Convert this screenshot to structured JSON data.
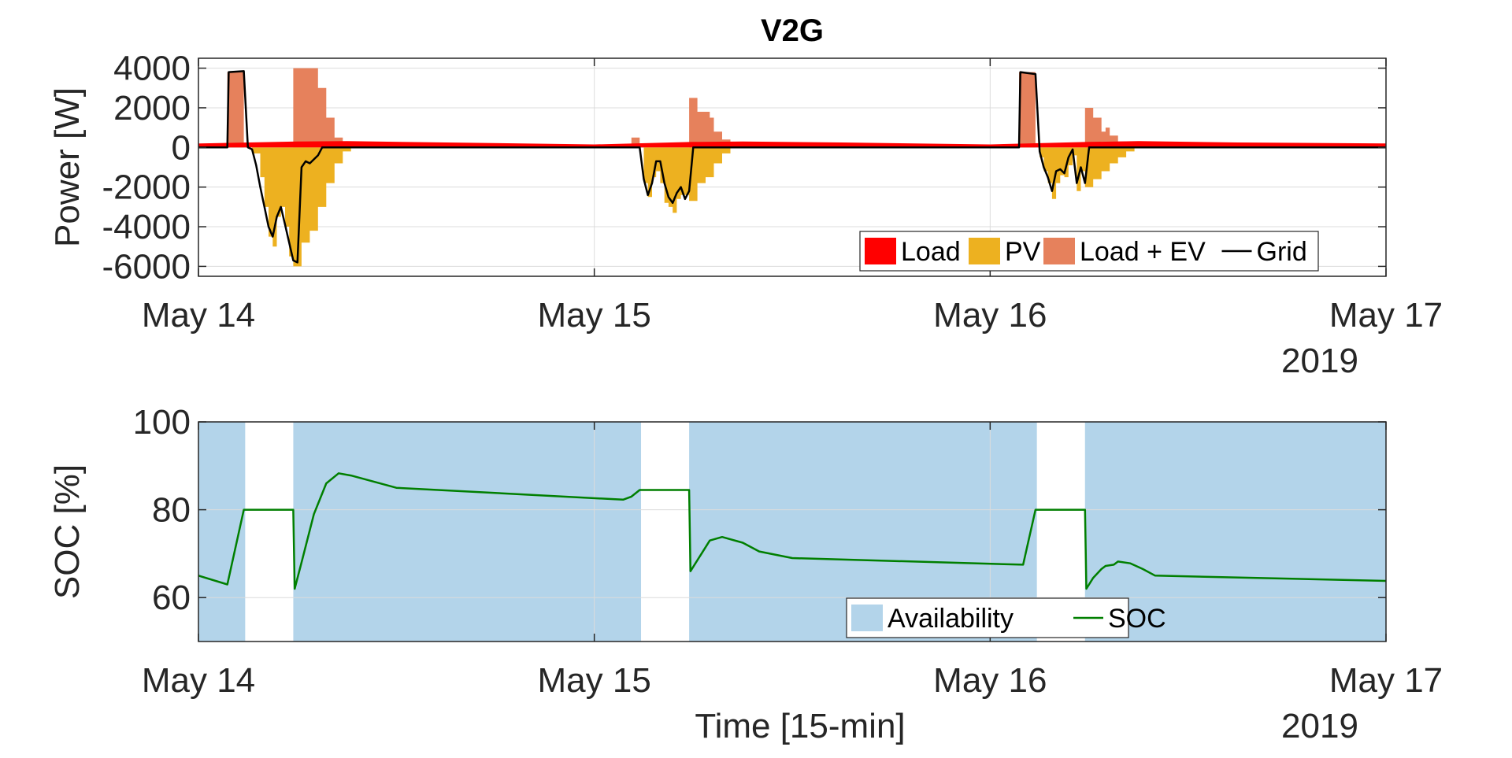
{
  "chart_data": [
    {
      "type": "area",
      "title": "V2G",
      "ylabel": "Power [W]",
      "xlabel": "",
      "x_range": [
        "2019-05-14 00:00",
        "2019-05-17 00:00"
      ],
      "ylim": [
        -6500,
        4500
      ],
      "yticks": [
        -6000,
        -4000,
        -2000,
        0,
        2000,
        4000
      ],
      "xtick_labels": [
        "May 14",
        "May 15",
        "May 16",
        "May 17"
      ],
      "year_label": "2019",
      "grid": true,
      "legend": {
        "placement": "bottom-right",
        "entries": [
          {
            "label": "Load",
            "color": "#ff0000",
            "kind": "area"
          },
          {
            "label": "PV",
            "color": "#edb120",
            "kind": "area"
          },
          {
            "label": "Load + EV",
            "color": "#e6815c",
            "kind": "area"
          },
          {
            "label": "Grid",
            "color": "#000000",
            "kind": "line"
          }
        ]
      },
      "series": [
        {
          "name": "Load + EV",
          "color": "#e6815c",
          "step": "stairs",
          "points": [
            [
              "2019-05-14 00:00",
              0
            ],
            [
              "2019-05-14 01:45",
              0
            ],
            [
              "2019-05-14 01:45",
              3800
            ],
            [
              "2019-05-14 02:45",
              3800
            ],
            [
              "2019-05-14 02:45",
              0
            ],
            [
              "2019-05-14 05:45",
              0
            ],
            [
              "2019-05-14 05:45",
              4000
            ],
            [
              "2019-05-14 06:45",
              4000
            ],
            [
              "2019-05-14 07:15",
              3000
            ],
            [
              "2019-05-14 07:45",
              1500
            ],
            [
              "2019-05-14 08:15",
              500
            ],
            [
              "2019-05-14 08:45",
              0
            ],
            [
              "2019-05-15 12:00",
              0
            ],
            [
              "2019-05-15 12:00",
              0
            ],
            [
              "2019-05-15 01:45",
              0
            ],
            [
              "2019-05-15 02:15",
              500
            ],
            [
              "2019-05-15 02:45",
              1500
            ],
            [
              "2019-05-15 02:45",
              0
            ],
            [
              "2019-05-15 05:45",
              0
            ],
            [
              "2019-05-15 05:45",
              2500
            ],
            [
              "2019-05-15 06:15",
              1800
            ],
            [
              "2019-05-15 07:00",
              1500
            ],
            [
              "2019-05-15 07:15",
              800
            ],
            [
              "2019-05-15 07:45",
              400
            ],
            [
              "2019-05-15 08:15",
              0
            ],
            [
              "2019-05-16 01:45",
              0
            ],
            [
              "2019-05-16 01:45",
              3800
            ],
            [
              "2019-05-16 02:45",
              3800
            ],
            [
              "2019-05-16 02:45",
              0
            ],
            [
              "2019-05-16 05:45",
              0
            ],
            [
              "2019-05-16 05:45",
              2000
            ],
            [
              "2019-05-16 06:15",
              1500
            ],
            [
              "2019-05-16 06:45",
              800
            ],
            [
              "2019-05-16 07:00",
              1000
            ],
            [
              "2019-05-16 07:15",
              600
            ],
            [
              "2019-05-16 07:45",
              300
            ],
            [
              "2019-05-16 08:15",
              0
            ],
            [
              "2019-05-17 00:00",
              0
            ]
          ]
        },
        {
          "name": "PV",
          "color": "#edb120",
          "step": "stairs",
          "points": [
            [
              "2019-05-14 00:00",
              0
            ],
            [
              "2019-05-14 02:45",
              0
            ],
            [
              "2019-05-14 03:15",
              -300
            ],
            [
              "2019-05-14 03:45",
              -1500
            ],
            [
              "2019-05-14 04:00",
              -3000
            ],
            [
              "2019-05-14 04:15",
              -4500
            ],
            [
              "2019-05-14 04:30",
              -5000
            ],
            [
              "2019-05-14 04:45",
              -3500
            ],
            [
              "2019-05-14 05:00",
              -3000
            ],
            [
              "2019-05-14 05:15",
              -4000
            ],
            [
              "2019-05-14 05:30",
              -5500
            ],
            [
              "2019-05-14 05:45",
              -6000
            ],
            [
              "2019-05-14 06:15",
              -4800
            ],
            [
              "2019-05-14 06:45",
              -4200
            ],
            [
              "2019-05-14 07:15",
              -3000
            ],
            [
              "2019-05-14 07:45",
              -1800
            ],
            [
              "2019-05-14 08:15",
              -800
            ],
            [
              "2019-05-14 08:45",
              -200
            ],
            [
              "2019-05-14 09:15",
              0
            ],
            [
              "2019-05-15 02:45",
              0
            ],
            [
              "2019-05-15 03:00",
              -1800
            ],
            [
              "2019-05-15 03:15",
              -2500
            ],
            [
              "2019-05-15 03:30",
              -1500
            ],
            [
              "2019-05-15 03:45",
              -1200
            ],
            [
              "2019-05-15 04:00",
              -1800
            ],
            [
              "2019-05-15 04:15",
              -2800
            ],
            [
              "2019-05-15 04:30",
              -3000
            ],
            [
              "2019-05-15 04:45",
              -3300
            ],
            [
              "2019-05-15 05:00",
              -2600
            ],
            [
              "2019-05-15 05:15",
              -2400
            ],
            [
              "2019-05-15 05:45",
              -2700
            ],
            [
              "2019-05-15 06:15",
              -1800
            ],
            [
              "2019-05-15 06:45",
              -1500
            ],
            [
              "2019-05-15 07:15",
              -800
            ],
            [
              "2019-05-15 07:45",
              -300
            ],
            [
              "2019-05-15 08:15",
              0
            ],
            [
              "2019-05-16 02:45",
              0
            ],
            [
              "2019-05-16 03:00",
              -500
            ],
            [
              "2019-05-16 03:15",
              -1200
            ],
            [
              "2019-05-16 03:30",
              -1800
            ],
            [
              "2019-05-16 03:45",
              -2600
            ],
            [
              "2019-05-16 04:00",
              -1800
            ],
            [
              "2019-05-16 04:15",
              -1400
            ],
            [
              "2019-05-16 04:30",
              -1500
            ],
            [
              "2019-05-16 04:45",
              -900
            ],
            [
              "2019-05-16 05:00",
              -400
            ],
            [
              "2019-05-16 05:15",
              -2200
            ],
            [
              "2019-05-16 05:30",
              -1200
            ],
            [
              "2019-05-16 05:45",
              -2000
            ],
            [
              "2019-05-16 06:15",
              -1600
            ],
            [
              "2019-05-16 06:45",
              -1200
            ],
            [
              "2019-05-16 07:15",
              -800
            ],
            [
              "2019-05-16 07:45",
              -500
            ],
            [
              "2019-05-16 08:15",
              -200
            ],
            [
              "2019-05-16 08:45",
              0
            ],
            [
              "2019-05-17 00:00",
              0
            ]
          ]
        },
        {
          "name": "Load",
          "color": "#ff0000",
          "points": [
            [
              "2019-05-14 00:00",
              200
            ],
            [
              "2019-05-14 06:00",
              300
            ],
            [
              "2019-05-14 09:00",
              320
            ],
            [
              "2019-05-14 15:00",
              250
            ],
            [
              "2019-05-15 00:00",
              150
            ],
            [
              "2019-05-15 06:00",
              280
            ],
            [
              "2019-05-15 09:00",
              300
            ],
            [
              "2019-05-15 15:00",
              250
            ],
            [
              "2019-05-16 00:00",
              150
            ],
            [
              "2019-05-16 06:00",
              280
            ],
            [
              "2019-05-16 09:00",
              320
            ],
            [
              "2019-05-16 15:00",
              250
            ],
            [
              "2019-05-17 00:00",
              200
            ]
          ]
        },
        {
          "name": "Grid",
          "color": "#000000",
          "kind": "line",
          "points": [
            [
              "2019-05-14 00:00",
              0
            ],
            [
              "2019-05-14 01:45",
              0
            ],
            [
              "2019-05-14 01:50",
              3800
            ],
            [
              "2019-05-14 02:45",
              3850
            ],
            [
              "2019-05-14 03:00",
              0
            ],
            [
              "2019-05-14 03:15",
              -100
            ],
            [
              "2019-05-14 03:30",
              -900
            ],
            [
              "2019-05-14 03:45",
              -2000
            ],
            [
              "2019-05-14 04:00",
              -3000
            ],
            [
              "2019-05-14 04:15",
              -4000
            ],
            [
              "2019-05-14 04:30",
              -4500
            ],
            [
              "2019-05-14 04:45",
              -3500
            ],
            [
              "2019-05-14 05:00",
              -3000
            ],
            [
              "2019-05-14 05:15",
              -3900
            ],
            [
              "2019-05-14 05:30",
              -4800
            ],
            [
              "2019-05-14 05:45",
              -5700
            ],
            [
              "2019-05-14 06:00",
              -5800
            ],
            [
              "2019-05-14 06:15",
              -1000
            ],
            [
              "2019-05-14 06:30",
              -700
            ],
            [
              "2019-05-14 06:45",
              -800
            ],
            [
              "2019-05-14 07:15",
              -400
            ],
            [
              "2019-05-14 07:30",
              0
            ],
            [
              "2019-05-15 02:45",
              0
            ],
            [
              "2019-05-15 03:00",
              -1600
            ],
            [
              "2019-05-15 03:15",
              -2400
            ],
            [
              "2019-05-15 03:30",
              -1800
            ],
            [
              "2019-05-15 03:45",
              -700
            ],
            [
              "2019-05-15 04:00",
              -700
            ],
            [
              "2019-05-15 04:15",
              -1800
            ],
            [
              "2019-05-15 04:30",
              -2500
            ],
            [
              "2019-05-15 04:45",
              -2800
            ],
            [
              "2019-05-15 05:00",
              -2300
            ],
            [
              "2019-05-15 05:15",
              -2000
            ],
            [
              "2019-05-15 05:30",
              -2600
            ],
            [
              "2019-05-15 05:45",
              -2200
            ],
            [
              "2019-05-15 06:00",
              0
            ],
            [
              "2019-05-16 01:45",
              0
            ],
            [
              "2019-05-16 01:50",
              3800
            ],
            [
              "2019-05-16 02:45",
              3700
            ],
            [
              "2019-05-16 03:00",
              -200
            ],
            [
              "2019-05-16 03:15",
              -1000
            ],
            [
              "2019-05-16 03:30",
              -1500
            ],
            [
              "2019-05-16 03:45",
              -2200
            ],
            [
              "2019-05-16 04:00",
              -1200
            ],
            [
              "2019-05-16 04:15",
              -1100
            ],
            [
              "2019-05-16 04:30",
              -1300
            ],
            [
              "2019-05-16 04:45",
              -500
            ],
            [
              "2019-05-16 05:00",
              -100
            ],
            [
              "2019-05-16 05:15",
              -1800
            ],
            [
              "2019-05-16 05:30",
              -1000
            ],
            [
              "2019-05-16 05:45",
              -1800
            ],
            [
              "2019-05-16 06:00",
              0
            ],
            [
              "2019-05-17 00:00",
              0
            ]
          ]
        }
      ]
    },
    {
      "type": "line",
      "title": "",
      "ylabel": "SOC [%]",
      "xlabel": "Time [15-min]",
      "x_range": [
        "2019-05-14 00:00",
        "2019-05-17 00:00"
      ],
      "ylim": [
        50,
        100
      ],
      "yticks": [
        60,
        80,
        100
      ],
      "xtick_labels": [
        "May 14",
        "May 15",
        "May 16",
        "May 17"
      ],
      "year_label": "2019",
      "grid": true,
      "legend": {
        "placement": "bottom-center",
        "entries": [
          {
            "label": "Availability",
            "color": "#b3d4ea",
            "kind": "area"
          },
          {
            "label": "SOC",
            "color": "#007f00",
            "kind": "line"
          }
        ]
      },
      "availability": [
        [
          "2019-05-14 00:00",
          "2019-05-14 02:50"
        ],
        [
          "2019-05-14 05:45",
          "2019-05-15 02:50"
        ],
        [
          "2019-05-15 05:45",
          "2019-05-16 02:50"
        ],
        [
          "2019-05-16 05:45",
          "2019-05-17 00:00"
        ]
      ],
      "series": [
        {
          "name": "SOC",
          "color": "#007f00",
          "points": [
            [
              "2019-05-14 00:00",
              65
            ],
            [
              "2019-05-14 01:45",
              63
            ],
            [
              "2019-05-14 02:45",
              80
            ],
            [
              "2019-05-14 05:45",
              80
            ],
            [
              "2019-05-14 05:50",
              62
            ],
            [
              "2019-05-14 06:15",
              68
            ],
            [
              "2019-05-14 07:00",
              79
            ],
            [
              "2019-05-14 07:45",
              86
            ],
            [
              "2019-05-14 08:30",
              88.3
            ],
            [
              "2019-05-14 09:15",
              87.8
            ],
            [
              "2019-05-14 12:00",
              85
            ],
            [
              "2019-05-15 01:45",
              82.3
            ],
            [
              "2019-05-15 02:15",
              83
            ],
            [
              "2019-05-15 02:45",
              84.5
            ],
            [
              "2019-05-15 05:45",
              84.5
            ],
            [
              "2019-05-15 05:50",
              66
            ],
            [
              "2019-05-15 06:30",
              70
            ],
            [
              "2019-05-15 07:00",
              73
            ],
            [
              "2019-05-15 07:45",
              73.8
            ],
            [
              "2019-05-15 09:00",
              72.5
            ],
            [
              "2019-05-15 10:00",
              70.5
            ],
            [
              "2019-05-15 12:00",
              69
            ],
            [
              "2019-05-16 02:00",
              67.5
            ],
            [
              "2019-05-16 02:45",
              80
            ],
            [
              "2019-05-16 05:45",
              80
            ],
            [
              "2019-05-16 05:50",
              62
            ],
            [
              "2019-05-16 06:15",
              64.5
            ],
            [
              "2019-05-16 06:45",
              66.5
            ],
            [
              "2019-05-16 07:00",
              67.2
            ],
            [
              "2019-05-16 07:30",
              67.5
            ],
            [
              "2019-05-16 07:45",
              68.2
            ],
            [
              "2019-05-16 08:30",
              67.8
            ],
            [
              "2019-05-16 09:15",
              66.5
            ],
            [
              "2019-05-16 10:00",
              65
            ],
            [
              "2019-05-17 00:00",
              63.8
            ]
          ]
        }
      ]
    }
  ]
}
